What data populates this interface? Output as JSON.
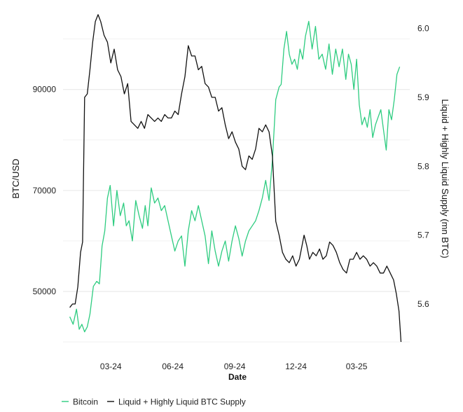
{
  "chart_data": {
    "type": "line",
    "title": "",
    "xlabel": "Date",
    "ylabel": "BTC/USD",
    "y2label": "Liquid + Highly Liquid Supply (mn BTC)",
    "grid": true,
    "legend_position": "bottom-left",
    "x_ticks": [
      "03-24",
      "06-24",
      "09-24",
      "12-24",
      "03-25"
    ],
    "x_ticks_day": [
      61,
      153,
      245,
      336,
      426
    ],
    "x_range_day": [
      -10,
      505
    ],
    "y_ticks": [
      50000,
      70000,
      90000
    ],
    "ylim": [
      40000,
      105500
    ],
    "y2_ticks": [
      5.6,
      5.7,
      5.8,
      5.9,
      6.0
    ],
    "y2lim": [
      5.545,
      6.025
    ],
    "series": [
      {
        "name": "Bitcoin",
        "axis": "left",
        "color": "#2ecc80",
        "x": [
          0,
          5,
          10,
          14,
          18,
          22,
          26,
          30,
          35,
          40,
          44,
          48,
          52,
          56,
          60,
          65,
          70,
          75,
          80,
          84,
          88,
          93,
          98,
          103,
          108,
          112,
          116,
          121,
          126,
          131,
          136,
          141,
          146,
          151,
          156,
          161,
          166,
          171,
          176,
          181,
          186,
          191,
          196,
          201,
          206,
          211,
          216,
          221,
          226,
          231,
          236,
          241,
          246,
          251,
          256,
          261,
          266,
          271,
          276,
          281,
          286,
          291,
          296,
          301,
          306,
          311,
          314,
          318,
          322,
          326,
          330,
          334,
          338,
          342,
          346,
          350,
          355,
          360,
          365,
          370,
          375,
          380,
          385,
          390,
          395,
          400,
          405,
          410,
          414,
          418,
          422,
          426,
          430,
          434,
          438,
          442,
          446,
          450,
          454,
          458,
          462,
          466,
          470,
          474,
          478,
          482,
          486,
          490
        ],
        "values": [
          45000,
          43500,
          46500,
          42500,
          43500,
          42000,
          43000,
          45500,
          51000,
          52000,
          51500,
          59000,
          62000,
          68500,
          71000,
          63000,
          70000,
          65000,
          67500,
          63000,
          64000,
          60000,
          68000,
          65000,
          62500,
          67000,
          63000,
          70500,
          67500,
          68500,
          66000,
          67000,
          64000,
          61000,
          58000,
          60000,
          61000,
          55000,
          62000,
          66000,
          64000,
          67000,
          64000,
          61000,
          55500,
          62000,
          58000,
          55000,
          58000,
          60000,
          56000,
          60000,
          63000,
          60500,
          57000,
          60000,
          62000,
          63000,
          64000,
          66000,
          68500,
          72000,
          68000,
          76000,
          88000,
          90500,
          91000,
          98000,
          101500,
          97000,
          95000,
          96000,
          94000,
          98000,
          96000,
          100500,
          103500,
          98000,
          102500,
          96000,
          97000,
          94000,
          99000,
          93000,
          98000,
          94500,
          98000,
          92000,
          97000,
          95000,
          90000,
          96000,
          87000,
          83000,
          84500,
          82500,
          86000,
          80500,
          83000,
          84500,
          86000,
          82000,
          78000,
          86000,
          84000,
          88000,
          93000,
          94500
        ]
      },
      {
        "name": "Liquid + Highly Liquid BTC Supply",
        "axis": "right",
        "color": "#111111",
        "x": [
          0,
          4,
          8,
          12,
          16,
          19,
          22,
          26,
          30,
          34,
          38,
          42,
          46,
          51,
          56,
          61,
          66,
          71,
          76,
          81,
          86,
          91,
          96,
          101,
          106,
          111,
          116,
          121,
          126,
          131,
          136,
          141,
          146,
          151,
          156,
          161,
          166,
          171,
          176,
          181,
          186,
          191,
          196,
          201,
          206,
          211,
          216,
          221,
          226,
          231,
          236,
          241,
          246,
          251,
          256,
          261,
          266,
          271,
          276,
          281,
          286,
          291,
          296,
          301,
          306,
          311,
          316,
          321,
          326,
          331,
          336,
          341,
          344,
          348,
          352,
          356,
          361,
          366,
          371,
          376,
          381,
          386,
          391,
          396,
          401,
          406,
          411,
          416,
          421,
          426,
          431,
          436,
          441,
          446,
          451,
          456,
          461,
          466,
          471,
          476,
          481,
          485,
          489,
          492
        ],
        "values": [
          5.595,
          5.6,
          5.6,
          5.625,
          5.675,
          5.69,
          5.9,
          5.905,
          5.94,
          5.98,
          6.01,
          6.02,
          6.01,
          5.99,
          5.98,
          5.95,
          5.97,
          5.94,
          5.93,
          5.905,
          5.92,
          5.865,
          5.86,
          5.855,
          5.865,
          5.855,
          5.875,
          5.87,
          5.865,
          5.87,
          5.865,
          5.875,
          5.87,
          5.87,
          5.88,
          5.875,
          5.905,
          5.93,
          5.975,
          5.96,
          5.96,
          5.94,
          5.945,
          5.92,
          5.915,
          5.9,
          5.9,
          5.88,
          5.885,
          5.86,
          5.84,
          5.85,
          5.835,
          5.825,
          5.8,
          5.795,
          5.815,
          5.81,
          5.825,
          5.855,
          5.85,
          5.86,
          5.85,
          5.815,
          5.72,
          5.7,
          5.675,
          5.665,
          5.66,
          5.67,
          5.655,
          5.665,
          5.68,
          5.7,
          5.685,
          5.665,
          5.675,
          5.67,
          5.68,
          5.665,
          5.67,
          5.69,
          5.685,
          5.675,
          5.66,
          5.65,
          5.645,
          5.665,
          5.665,
          5.675,
          5.665,
          5.67,
          5.665,
          5.655,
          5.66,
          5.655,
          5.645,
          5.645,
          5.655,
          5.645,
          5.635,
          5.615,
          5.59,
          5.545
        ]
      }
    ]
  }
}
